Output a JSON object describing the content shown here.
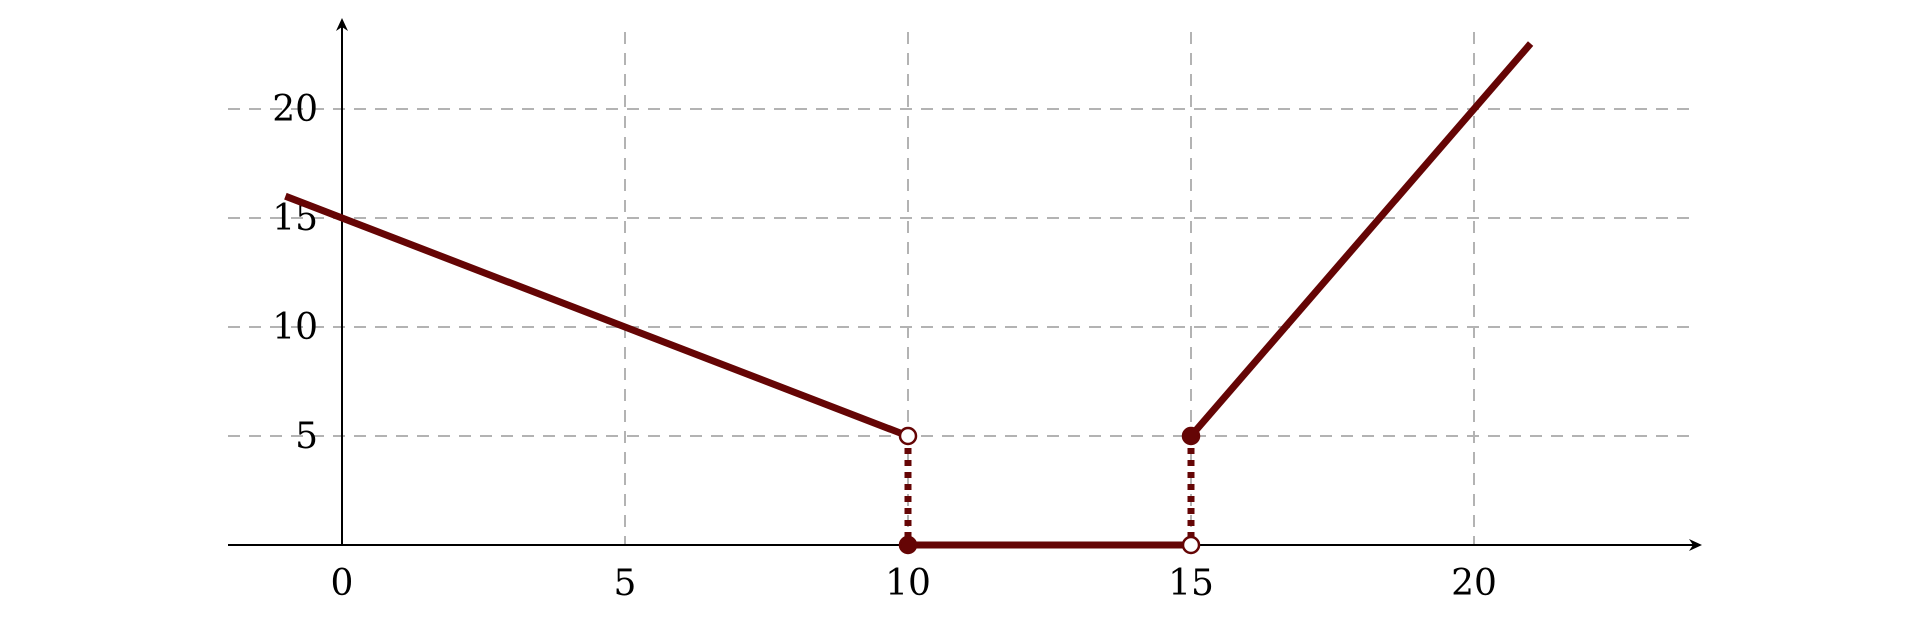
{
  "chart_data": {
    "type": "line",
    "title": "",
    "xlabel": "",
    "ylabel": "",
    "xlim": [
      -2,
      24
    ],
    "ylim": [
      0,
      24
    ],
    "x_ticks": [
      0,
      5,
      10,
      15,
      20
    ],
    "y_ticks": [
      5,
      10,
      15,
      20
    ],
    "x_grid": [
      5,
      10,
      15,
      20
    ],
    "y_grid": [
      5,
      10,
      15,
      20
    ],
    "grid": true,
    "grid_style": "dashed",
    "legend": "none",
    "color": "#650505",
    "grid_color": "#b3b3b3",
    "series": [
      {
        "x": [
          -1,
          10
        ],
        "y": [
          16,
          5
        ]
      },
      {
        "x": [
          10,
          15
        ],
        "y": [
          0,
          0
        ]
      },
      {
        "x": [
          15,
          21
        ],
        "y": [
          5,
          23
        ]
      }
    ],
    "connectors": [
      {
        "x": [
          10,
          10
        ],
        "y": [
          5,
          0
        ],
        "style": "dotted"
      },
      {
        "x": [
          15,
          15
        ],
        "y": [
          5,
          0
        ],
        "style": "dotted"
      }
    ],
    "endpoints": [
      {
        "x": 10,
        "y": 5,
        "filled": false
      },
      {
        "x": 10,
        "y": 0,
        "filled": true
      },
      {
        "x": 15,
        "y": 0,
        "filled": false
      },
      {
        "x": 15,
        "y": 5,
        "filled": true
      }
    ]
  }
}
